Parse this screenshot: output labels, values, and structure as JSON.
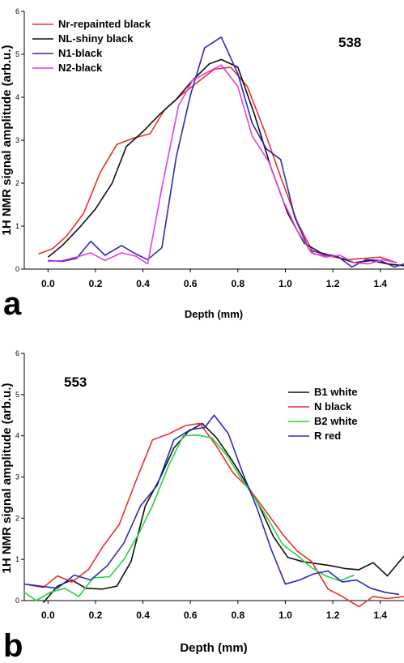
{
  "chart_data": [
    {
      "type": "line",
      "panel_letter": "a",
      "sample_label": "538",
      "xlabel": "Depth (mm)",
      "ylabel": "1H NMR signal amplitude (arb.u.)",
      "xlim": [
        -0.1,
        1.5
      ],
      "ylim": [
        0,
        6
      ],
      "xticks": [
        0.0,
        0.2,
        0.4,
        0.6,
        0.8,
        1.0,
        1.2,
        1.4
      ],
      "xtick_labels": [
        "0.0",
        "0.2",
        "0.4",
        "0.6",
        "0.8",
        "1.0",
        "1.2",
        "1.4"
      ],
      "yticks": [
        0,
        1,
        2,
        3,
        4,
        5,
        6
      ],
      "ytick_labels": [
        "0",
        "1",
        "2",
        "3",
        "4",
        "5",
        "6"
      ],
      "legend_position": "top-left",
      "series": [
        {
          "name": "Nr-repainted black",
          "color": "#e8312a",
          "x": [
            -0.04,
            0.02,
            0.08,
            0.15,
            0.22,
            0.29,
            0.36,
            0.43,
            0.49,
            0.56,
            0.63,
            0.7,
            0.77,
            0.84,
            0.91,
            0.98,
            1.05,
            1.12,
            1.19,
            1.26,
            1.33,
            1.4,
            1.47
          ],
          "y": [
            0.35,
            0.48,
            0.78,
            1.3,
            2.25,
            2.9,
            3.05,
            3.15,
            3.7,
            4.05,
            4.35,
            4.65,
            4.7,
            4.25,
            3.25,
            2.15,
            1.1,
            0.35,
            0.3,
            0.22,
            0.25,
            0.28,
            0.15
          ]
        },
        {
          "name": "NL-shiny black",
          "color": "#111111",
          "x": [
            0.0,
            0.06,
            0.13,
            0.2,
            0.27,
            0.33,
            0.4,
            0.47,
            0.54,
            0.61,
            0.68,
            0.73,
            0.8,
            0.87,
            0.94,
            1.01,
            1.08,
            1.15,
            1.22,
            1.29,
            1.36,
            1.43,
            1.5
          ],
          "y": [
            0.28,
            0.55,
            0.95,
            1.4,
            2.0,
            2.85,
            3.2,
            3.6,
            3.95,
            4.4,
            4.78,
            4.88,
            4.7,
            3.6,
            2.35,
            1.3,
            0.6,
            0.38,
            0.28,
            0.15,
            0.2,
            0.12,
            0.08
          ]
        },
        {
          "name": "N1-black",
          "color": "#2a2ab8",
          "x": [
            0.0,
            0.06,
            0.12,
            0.18,
            0.24,
            0.31,
            0.37,
            0.42,
            0.48,
            0.54,
            0.6,
            0.66,
            0.73,
            0.8,
            0.86,
            0.92,
            0.98,
            1.04,
            1.1,
            1.16,
            1.22,
            1.28,
            1.34,
            1.4,
            1.46,
            1.5
          ],
          "y": [
            0.2,
            0.18,
            0.25,
            0.65,
            0.32,
            0.55,
            0.35,
            0.22,
            0.5,
            2.6,
            4.05,
            5.15,
            5.4,
            4.55,
            3.4,
            2.8,
            2.55,
            1.2,
            0.45,
            0.35,
            0.3,
            0.05,
            0.22,
            0.2,
            0.05,
            0.12
          ]
        },
        {
          "name": "N2-black",
          "color": "#e63de0",
          "x": [
            0.0,
            0.06,
            0.12,
            0.18,
            0.24,
            0.31,
            0.37,
            0.42,
            0.48,
            0.55,
            0.61,
            0.67,
            0.73,
            0.8,
            0.86,
            0.93,
            0.99,
            1.05,
            1.11,
            1.17,
            1.23,
            1.29,
            1.35,
            1.41,
            1.47
          ],
          "y": [
            0.18,
            0.2,
            0.28,
            0.38,
            0.2,
            0.38,
            0.3,
            0.12,
            1.9,
            3.8,
            4.4,
            4.58,
            4.75,
            4.25,
            3.1,
            2.5,
            1.6,
            0.9,
            0.38,
            0.28,
            0.32,
            0.15,
            0.12,
            0.22,
            0.15
          ]
        }
      ]
    },
    {
      "type": "line",
      "panel_letter": "b",
      "sample_label": "553",
      "xlabel": "Depth (mm)",
      "ylabel": "1H NMR signal amplitude (arb.u.)",
      "xlim": [
        -0.1,
        1.5
      ],
      "ylim": [
        0,
        6
      ],
      "xticks": [
        0.0,
        0.2,
        0.4,
        0.6,
        0.8,
        1.0,
        1.2,
        1.4
      ],
      "xtick_labels": [
        "0.0",
        "0.2",
        "0.4",
        "0.6",
        "0.8",
        "1.0",
        "1.2",
        "1.4"
      ],
      "yticks": [
        0,
        1,
        2,
        3,
        4,
        5,
        6
      ],
      "ytick_labels": [
        "0",
        "1",
        "2",
        "3",
        "4",
        "5",
        "6"
      ],
      "legend_position": "top-right",
      "series": [
        {
          "name": "B1 white",
          "color": "#111111",
          "x": [
            -0.02,
            0.04,
            0.1,
            0.16,
            0.23,
            0.29,
            0.35,
            0.41,
            0.47,
            0.53,
            0.59,
            0.65,
            0.71,
            0.77,
            0.83,
            0.89,
            0.95,
            1.01,
            1.07,
            1.13,
            1.19,
            1.25,
            1.31,
            1.37,
            1.43,
            1.5
          ],
          "y": [
            -0.05,
            0.35,
            0.5,
            0.3,
            0.28,
            0.35,
            0.95,
            2.3,
            2.95,
            3.7,
            4.1,
            4.3,
            3.95,
            3.45,
            2.9,
            2.3,
            1.55,
            1.05,
            0.95,
            0.9,
            0.85,
            0.78,
            0.75,
            0.92,
            0.6,
            1.08
          ]
        },
        {
          "name": "N  black",
          "color": "#e8312a",
          "x": [
            -0.08,
            -0.02,
            0.04,
            0.1,
            0.17,
            0.23,
            0.3,
            0.37,
            0.44,
            0.51,
            0.58,
            0.64,
            0.71,
            0.78,
            0.85,
            0.92,
            0.99,
            1.05,
            1.11,
            1.18,
            1.24,
            1.31,
            1.37,
            1.43,
            1.5
          ],
          "y": [
            0.38,
            0.32,
            0.6,
            0.45,
            0.75,
            1.3,
            1.85,
            2.9,
            3.9,
            4.05,
            4.25,
            4.3,
            3.75,
            3.1,
            2.7,
            2.15,
            1.6,
            1.2,
            0.95,
            0.28,
            0.1,
            -0.15,
            0.1,
            0.05,
            0.1
          ]
        },
        {
          "name": "B2 white",
          "color": "#22d43c",
          "x": [
            -0.1,
            -0.05,
            0.01,
            0.07,
            0.13,
            0.19,
            0.26,
            0.32,
            0.38,
            0.44,
            0.51,
            0.57,
            0.63,
            0.69,
            0.75,
            0.81,
            0.87,
            0.93,
            0.99,
            1.05,
            1.11,
            1.17,
            1.23,
            1.29
          ],
          "y": [
            0.2,
            0.0,
            0.2,
            0.3,
            0.1,
            0.55,
            0.58,
            1.0,
            1.6,
            2.3,
            3.3,
            4.0,
            4.02,
            3.95,
            3.55,
            3.0,
            2.5,
            1.95,
            1.35,
            1.1,
            0.8,
            0.6,
            0.48,
            0.62
          ]
        },
        {
          "name": "R red",
          "color": "#2a2ab8",
          "x": [
            -0.1,
            -0.03,
            0.04,
            0.11,
            0.18,
            0.25,
            0.32,
            0.39,
            0.46,
            0.53,
            0.6,
            0.66,
            0.7,
            0.76,
            0.82,
            0.88,
            0.94,
            1.0,
            1.06,
            1.12,
            1.18,
            1.24,
            1.3,
            1.36,
            1.42,
            1.48
          ],
          "y": [
            0.4,
            0.35,
            0.3,
            0.62,
            0.5,
            0.85,
            1.4,
            2.3,
            2.8,
            3.9,
            4.15,
            4.2,
            4.5,
            4.05,
            3.1,
            2.25,
            1.25,
            0.4,
            0.5,
            0.65,
            0.72,
            0.45,
            0.5,
            0.3,
            0.2,
            0.15
          ]
        }
      ]
    }
  ]
}
